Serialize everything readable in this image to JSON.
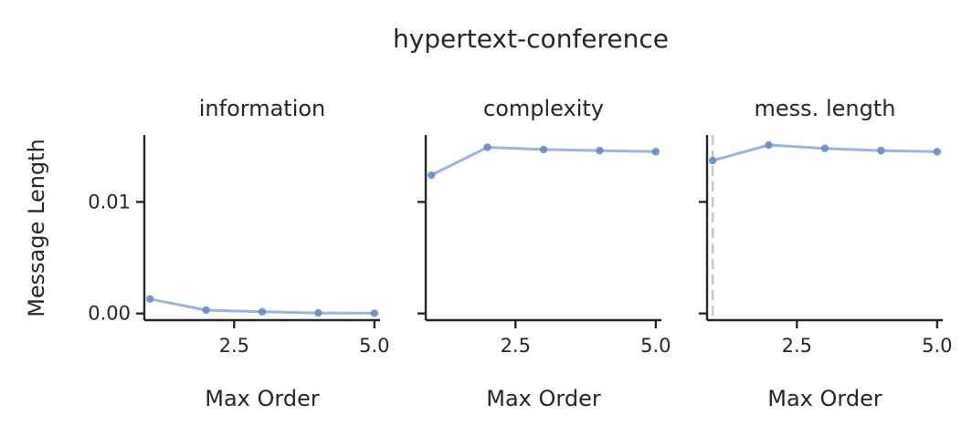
{
  "figure": {
    "title": "hypertext-conference",
    "xlabel": "Max Order",
    "ylabel": "Message Length",
    "colors": {
      "series": "#7b9bcb",
      "point": "#6a8cc3",
      "reference_line": "#c8c8c8",
      "axis": "#262626"
    }
  },
  "chart_data": [
    {
      "type": "line",
      "title": "information",
      "xlabel": "Max Order",
      "ylabel": "Message Length",
      "x": [
        1,
        2,
        3,
        4,
        5
      ],
      "series": [
        {
          "values": [
            0.0013,
            0.0003,
            0.00015,
            5e-05,
            2e-05
          ]
        }
      ],
      "xlim": [
        0.9,
        5.1
      ],
      "ylim": [
        -0.0006,
        0.016
      ],
      "xticks": [
        2.5,
        5.0
      ],
      "xtick_labels": [
        "2.5",
        "5.0"
      ],
      "yticks": [
        0.0,
        0.01
      ],
      "ytick_labels": [
        "0.00",
        "0.01"
      ],
      "grid": false
    },
    {
      "type": "line",
      "title": "complexity",
      "xlabel": "Max Order",
      "x": [
        1,
        2,
        3,
        4,
        5
      ],
      "series": [
        {
          "values": [
            0.0124,
            0.0149,
            0.0147,
            0.0146,
            0.0145
          ]
        }
      ],
      "xlim": [
        0.9,
        5.1
      ],
      "ylim": [
        -0.0006,
        0.016
      ],
      "xticks": [
        2.5,
        5.0
      ],
      "xtick_labels": [
        "2.5",
        "5.0"
      ],
      "yticks": [
        0.0,
        0.01
      ],
      "ytick_labels": [
        "",
        ""
      ],
      "grid": false
    },
    {
      "type": "line",
      "title": "mess. length",
      "xlabel": "Max Order",
      "x": [
        1,
        2,
        3,
        4,
        5
      ],
      "series": [
        {
          "values": [
            0.0137,
            0.0151,
            0.0148,
            0.0146,
            0.0145
          ]
        }
      ],
      "reference_x": 1,
      "xlim": [
        0.9,
        5.1
      ],
      "ylim": [
        -0.0006,
        0.016
      ],
      "xticks": [
        2.5,
        5.0
      ],
      "xtick_labels": [
        "2.5",
        "5.0"
      ],
      "yticks": [
        0.0,
        0.01
      ],
      "ytick_labels": [
        "",
        ""
      ],
      "grid": false
    }
  ]
}
